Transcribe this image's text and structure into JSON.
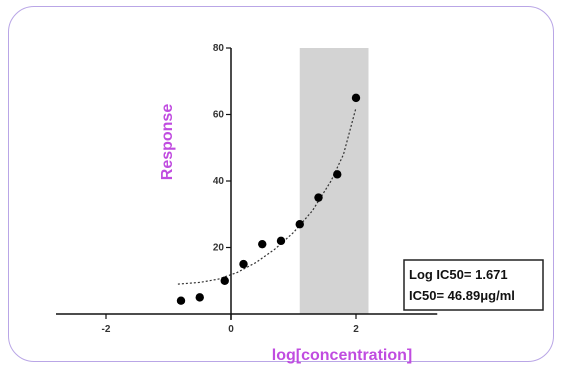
{
  "chart_data": {
    "type": "scatter",
    "title": "",
    "xlabel": "log[concentration]",
    "ylabel": "Response",
    "xlim": [
      -2.8,
      3.3
    ],
    "ylim": [
      0,
      80
    ],
    "x_ticks": [
      -2,
      0,
      2
    ],
    "y_ticks": [
      20,
      40,
      60,
      80
    ],
    "x_tick_labels": [
      "-2",
      "0",
      "2"
    ],
    "y_tick_labels": [
      "20",
      "40",
      "60",
      "80"
    ],
    "label_color": "#c04ce0",
    "shaded_band": {
      "x_range": [
        1.1,
        2.2
      ],
      "color": "#d3d3d3"
    },
    "series": [
      {
        "points": [
          {
            "x": -0.8,
            "y": 4
          },
          {
            "x": -0.5,
            "y": 5
          },
          {
            "x": -0.1,
            "y": 10
          },
          {
            "x": 0.2,
            "y": 15
          },
          {
            "x": 0.5,
            "y": 21
          },
          {
            "x": 0.8,
            "y": 22
          },
          {
            "x": 1.1,
            "y": 27
          },
          {
            "x": 1.4,
            "y": 35
          },
          {
            "x": 1.7,
            "y": 42
          },
          {
            "x": 2.0,
            "y": 65
          }
        ]
      }
    ],
    "fit_curve": [
      {
        "x": -0.85,
        "y": 9.0
      },
      {
        "x": -0.5,
        "y": 9.5
      },
      {
        "x": -0.2,
        "y": 10.5
      },
      {
        "x": 0.1,
        "y": 12.5
      },
      {
        "x": 0.4,
        "y": 15.5
      },
      {
        "x": 0.7,
        "y": 19.5
      },
      {
        "x": 1.0,
        "y": 24.5
      },
      {
        "x": 1.3,
        "y": 31.0
      },
      {
        "x": 1.6,
        "y": 40.0
      },
      {
        "x": 1.8,
        "y": 48.0
      },
      {
        "x": 2.0,
        "y": 62.0
      }
    ],
    "annotation": {
      "line1": "Log IC50= 1.671",
      "line2": "IC50= 46.89μg/ml"
    }
  }
}
